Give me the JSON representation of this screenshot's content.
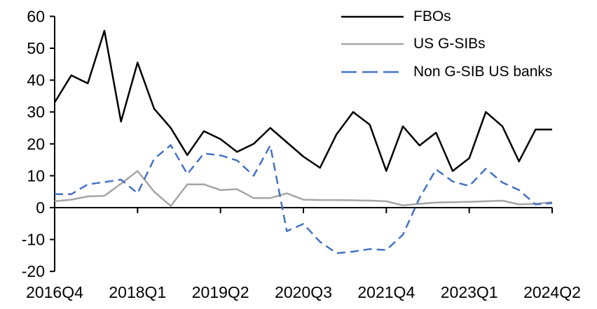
{
  "chart_data": {
    "type": "line",
    "title": "",
    "xlabel": "",
    "ylabel": "",
    "ylim": [
      -20,
      60
    ],
    "yticks": [
      60,
      50,
      40,
      30,
      20,
      10,
      0,
      -10,
      -20
    ],
    "grid": false,
    "legend_position": "top-right",
    "categories": [
      "2016Q4",
      "2017Q1",
      "2017Q2",
      "2017Q3",
      "2017Q4",
      "2018Q1",
      "2018Q2",
      "2018Q3",
      "2018Q4",
      "2019Q1",
      "2019Q2",
      "2019Q3",
      "2019Q4",
      "2020Q1",
      "2020Q2",
      "2020Q3",
      "2020Q4",
      "2021Q1",
      "2021Q2",
      "2021Q3",
      "2021Q4",
      "2022Q1",
      "2022Q2",
      "2022Q3",
      "2022Q4",
      "2023Q1",
      "2023Q2",
      "2023Q3",
      "2023Q4",
      "2024Q1",
      "2024Q2"
    ],
    "x_tick_indices": [
      0,
      5,
      10,
      15,
      20,
      25,
      30
    ],
    "x_tick_labels": [
      "2016Q4",
      "2018Q1",
      "2019Q2",
      "2020Q3",
      "2021Q4",
      "2023Q1",
      "2024Q2"
    ],
    "series": [
      {
        "name": "FBOs",
        "color": "#000000",
        "line_style": "solid",
        "values": [
          33,
          41.5,
          39,
          55.5,
          27,
          45.5,
          31,
          25,
          16.5,
          24,
          21.5,
          17.5,
          20,
          25,
          20.5,
          16,
          12.5,
          23,
          30,
          26,
          11.5,
          25.5,
          19.5,
          23.5,
          11.5,
          15.5,
          30,
          25.5,
          14.5,
          24.5,
          24.5
        ]
      },
      {
        "name": "US G-SIBs",
        "color": "#A5A5A5",
        "line_style": "solid",
        "values": [
          2,
          2.5,
          3.5,
          3.7,
          7.5,
          11.5,
          5,
          0.5,
          7.3,
          7.3,
          5.5,
          5.8,
          3,
          3,
          4.5,
          2.5,
          2.4,
          2.4,
          2.3,
          2.2,
          2,
          0.7,
          1.2,
          1.6,
          1.7,
          1.8,
          2,
          2.2,
          1,
          1.2,
          1.7
        ]
      },
      {
        "name": "Non G-SIB US banks",
        "color": "#4472C4",
        "line_style": "dashed",
        "values": [
          4.2,
          4.2,
          7.3,
          8,
          8.8,
          4.5,
          15.3,
          19.6,
          10.5,
          17,
          16.4,
          14.8,
          10,
          19.5,
          -7.4,
          -5.1,
          -10.7,
          -14.3,
          -13.8,
          -13,
          -13.3,
          -8.5,
          3,
          12,
          8.2,
          6.8,
          12.2,
          7.9,
          5.5,
          1,
          1.4
        ]
      }
    ]
  }
}
